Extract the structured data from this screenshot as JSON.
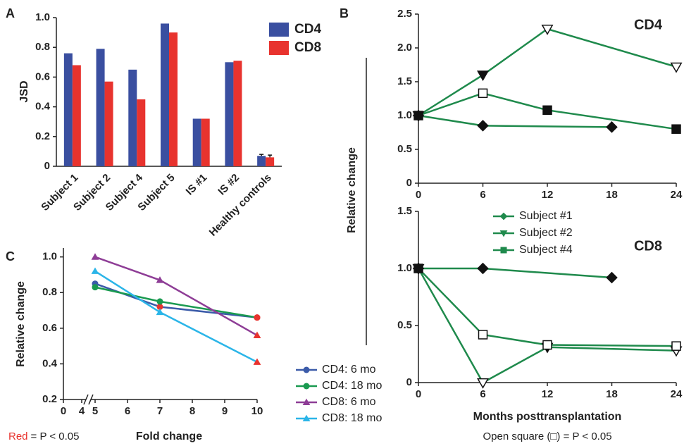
{
  "panel_labels": [
    "A",
    "B",
    "C"
  ],
  "chart_data": [
    {
      "type": "bar",
      "ylabel": "JSD",
      "categories": [
        "Subject 1",
        "Subject 2",
        "Subject 4",
        "Subject 5",
        "IS #1",
        "IS #2",
        "Healthy controls"
      ],
      "series": [
        {
          "name": "CD4",
          "color": "#3a4fa0",
          "values": [
            0.76,
            0.79,
            0.65,
            0.96,
            0.32,
            0.7,
            0.07
          ],
          "errors": [
            null,
            null,
            null,
            null,
            null,
            null,
            0.01
          ]
        },
        {
          "name": "CD8",
          "color": "#e8332e",
          "values": [
            0.68,
            0.57,
            0.45,
            0.9,
            0.32,
            0.71,
            0.06
          ],
          "errors": [
            null,
            null,
            null,
            null,
            null,
            null,
            0.015
          ]
        }
      ],
      "ylim": [
        0,
        1.0
      ],
      "yticks": [
        0,
        0.2,
        0.4,
        0.6,
        0.8,
        {
          "value": 1.0,
          "label": "1.0"
        }
      ]
    },
    {
      "type": "line",
      "title": "CD4",
      "ylabel": "Relative change",
      "xlim": [
        0,
        24
      ],
      "xticks": [
        0,
        6,
        12,
        18,
        24
      ],
      "ylim": [
        0,
        2.5
      ],
      "yticks": [
        0,
        0.5,
        {
          "value": 1,
          "label": "1.0"
        },
        1.5,
        {
          "value": 2,
          "label": "2.0"
        },
        2.5
      ],
      "series": [
        {
          "marker": "diamond",
          "color": "#1f8a4c",
          "x": [
            0,
            6,
            18
          ],
          "values": [
            1.0,
            0.85,
            0.83
          ],
          "open": [
            false,
            false,
            false
          ]
        },
        {
          "marker": "triangle-down",
          "color": "#1f8a4c",
          "x": [
            0,
            6,
            12,
            24
          ],
          "values": [
            1.0,
            1.6,
            2.28,
            1.72
          ],
          "open": [
            false,
            false,
            true,
            true
          ]
        },
        {
          "marker": "square",
          "color": "#1f8a4c",
          "x": [
            0,
            6,
            12,
            24
          ],
          "values": [
            1.0,
            1.33,
            1.08,
            0.8
          ],
          "open": [
            false,
            true,
            false,
            false
          ]
        }
      ]
    },
    {
      "type": "line",
      "title": "CD8",
      "xlabel": "Months posttransplantation",
      "note": "Open square (□) = P < 0.05",
      "xlim": [
        0,
        24
      ],
      "xticks": [
        0,
        6,
        12,
        18,
        24
      ],
      "ylim": [
        0,
        1.5
      ],
      "yticks": [
        0,
        0.5,
        {
          "value": 1,
          "label": "1.0"
        },
        1.5
      ],
      "series": [
        {
          "name": "Subject #1",
          "marker": "diamond",
          "color": "#1f8a4c",
          "x": [
            0,
            6,
            18
          ],
          "values": [
            1.0,
            1.0,
            0.92
          ],
          "open": [
            false,
            false,
            false
          ]
        },
        {
          "name": "Subject #2",
          "marker": "triangle-down",
          "color": "#1f8a4c",
          "x": [
            0,
            6,
            12,
            24
          ],
          "values": [
            1.0,
            0.0,
            0.31,
            0.28
          ],
          "open": [
            false,
            true,
            false,
            true
          ]
        },
        {
          "name": "Subject #4",
          "marker": "square",
          "color": "#1f8a4c",
          "x": [
            0,
            6,
            12,
            24
          ],
          "values": [
            1.0,
            0.42,
            0.33,
            0.32
          ],
          "open": [
            false,
            true,
            true,
            true
          ]
        }
      ]
    },
    {
      "type": "line",
      "xlabel": "Fold change",
      "ylabel": "Relative change",
      "note_highlight": "Red",
      "note": "= P < 0.05",
      "highlight_color": "#e8332e",
      "xlim": [
        0,
        10
      ],
      "xbreak": [
        4,
        5
      ],
      "xticks": [
        0,
        4,
        5,
        6,
        7,
        8,
        9,
        10
      ],
      "ylim": [
        0.2,
        1.05
      ],
      "yticks": [
        0.2,
        0.4,
        0.6,
        0.8,
        {
          "value": 1.0,
          "label": "1.0"
        }
      ],
      "series": [
        {
          "name": "CD4: 6 mo",
          "marker": "circle",
          "color": "#3b5ba9",
          "x": [
            5,
            7,
            10
          ],
          "values": [
            0.85,
            0.72,
            0.66
          ],
          "significant": [
            false,
            true,
            true
          ]
        },
        {
          "name": "CD4: 18 mo",
          "marker": "circle",
          "color": "#1a9a50",
          "x": [
            5,
            7,
            10
          ],
          "values": [
            0.83,
            0.75,
            0.66
          ],
          "significant": [
            false,
            false,
            true
          ]
        },
        {
          "name": "CD8: 6 mo",
          "marker": "triangle",
          "color": "#8e3d96",
          "x": [
            5,
            7,
            10
          ],
          "values": [
            1.0,
            0.87,
            0.56
          ],
          "significant": [
            false,
            false,
            true
          ]
        },
        {
          "name": "CD8: 18 mo",
          "marker": "triangle",
          "color": "#2bb5e8",
          "x": [
            5,
            7,
            10
          ],
          "values": [
            0.92,
            0.69,
            0.41
          ],
          "significant": [
            false,
            false,
            true
          ]
        }
      ]
    }
  ]
}
